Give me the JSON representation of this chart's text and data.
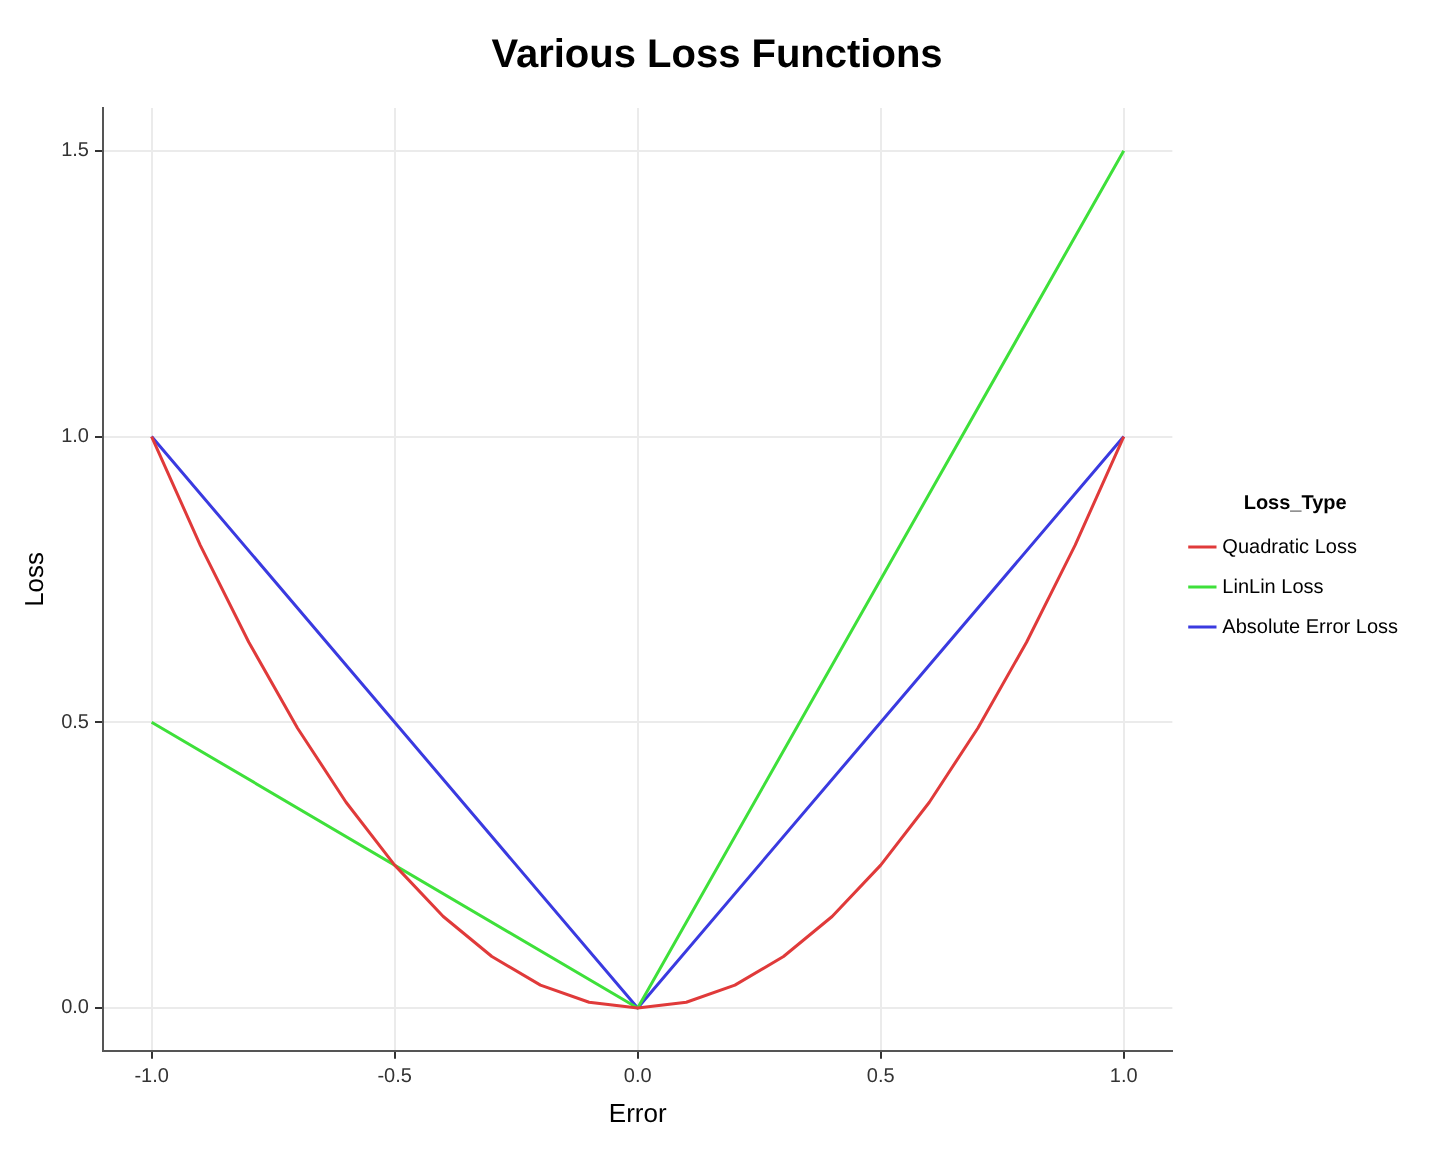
{
  "chart_data": {
    "type": "line",
    "title": "Various Loss Functions",
    "xlabel": "Error",
    "ylabel": "Loss",
    "legend_title": "Loss_Type",
    "series": [
      {
        "name": "Quadratic Loss",
        "color": "#e03a3a",
        "x": [
          -1,
          -0.9,
          -0.8,
          -0.7,
          -0.6,
          -0.5,
          -0.4,
          -0.3,
          -0.2,
          -0.1,
          0,
          0.1,
          0.2,
          0.3,
          0.4,
          0.5,
          0.6,
          0.7,
          0.8,
          0.9,
          1
        ],
        "values": [
          1,
          0.81,
          0.64,
          0.49,
          0.36,
          0.25,
          0.16,
          0.09,
          0.04,
          0.01,
          0,
          0.01,
          0.04,
          0.09,
          0.16,
          0.25,
          0.36,
          0.49,
          0.64,
          0.81,
          1
        ]
      },
      {
        "name": "LinLin Loss",
        "color": "#3ee03a",
        "x": [
          -1,
          0,
          1
        ],
        "values": [
          0.5,
          0,
          1.5
        ]
      },
      {
        "name": "Absolute Error Loss",
        "color": "#3a3ae0",
        "x": [
          -1,
          0,
          1
        ],
        "values": [
          1,
          0,
          1
        ]
      }
    ],
    "xlim": [
      -1.1,
      1.1
    ],
    "ylim": [
      -0.075,
      1.575
    ],
    "xticks": [
      {
        "value": -1,
        "label": "-1.0"
      },
      {
        "value": -0.5,
        "label": "-0.5"
      },
      {
        "value": 0,
        "label": "0.0"
      },
      {
        "value": 0.5,
        "label": "0.5"
      },
      {
        "value": 1,
        "label": "1.0"
      }
    ],
    "yticks": [
      {
        "value": 0,
        "label": "0.0"
      },
      {
        "value": 0.5,
        "label": "0.5"
      },
      {
        "value": 1,
        "label": "1.0"
      },
      {
        "value": 1.5,
        "label": "1.5"
      }
    ],
    "grid": true,
    "legend": "right",
    "marker": "none",
    "line_style": "solid"
  }
}
